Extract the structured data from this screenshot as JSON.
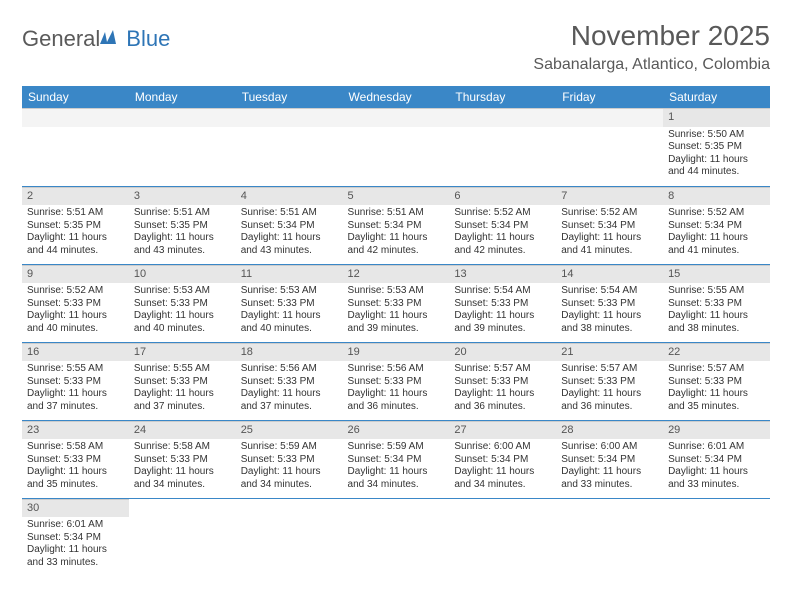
{
  "brand": {
    "part1": "General",
    "part2": "Blue"
  },
  "colors": {
    "header_bg": "#3a87c7",
    "header_text": "#ffffff",
    "daynum_bg": "#e7e7e7",
    "border": "#3a87c7",
    "title": "#595959",
    "body_text": "#333333",
    "logo_gray": "#5a5a5a",
    "logo_blue": "#2e75b6"
  },
  "title": "November 2025",
  "location": "Sabanalarga, Atlantico, Colombia",
  "weekdays": [
    "Sunday",
    "Monday",
    "Tuesday",
    "Wednesday",
    "Thursday",
    "Friday",
    "Saturday"
  ],
  "weeks": [
    [
      null,
      null,
      null,
      null,
      null,
      null,
      {
        "n": "1",
        "sr": "Sunrise: 5:50 AM",
        "ss": "Sunset: 5:35 PM",
        "d1": "Daylight: 11 hours",
        "d2": "and 44 minutes."
      }
    ],
    [
      {
        "n": "2",
        "sr": "Sunrise: 5:51 AM",
        "ss": "Sunset: 5:35 PM",
        "d1": "Daylight: 11 hours",
        "d2": "and 44 minutes."
      },
      {
        "n": "3",
        "sr": "Sunrise: 5:51 AM",
        "ss": "Sunset: 5:35 PM",
        "d1": "Daylight: 11 hours",
        "d2": "and 43 minutes."
      },
      {
        "n": "4",
        "sr": "Sunrise: 5:51 AM",
        "ss": "Sunset: 5:34 PM",
        "d1": "Daylight: 11 hours",
        "d2": "and 43 minutes."
      },
      {
        "n": "5",
        "sr": "Sunrise: 5:51 AM",
        "ss": "Sunset: 5:34 PM",
        "d1": "Daylight: 11 hours",
        "d2": "and 42 minutes."
      },
      {
        "n": "6",
        "sr": "Sunrise: 5:52 AM",
        "ss": "Sunset: 5:34 PM",
        "d1": "Daylight: 11 hours",
        "d2": "and 42 minutes."
      },
      {
        "n": "7",
        "sr": "Sunrise: 5:52 AM",
        "ss": "Sunset: 5:34 PM",
        "d1": "Daylight: 11 hours",
        "d2": "and 41 minutes."
      },
      {
        "n": "8",
        "sr": "Sunrise: 5:52 AM",
        "ss": "Sunset: 5:34 PM",
        "d1": "Daylight: 11 hours",
        "d2": "and 41 minutes."
      }
    ],
    [
      {
        "n": "9",
        "sr": "Sunrise: 5:52 AM",
        "ss": "Sunset: 5:33 PM",
        "d1": "Daylight: 11 hours",
        "d2": "and 40 minutes."
      },
      {
        "n": "10",
        "sr": "Sunrise: 5:53 AM",
        "ss": "Sunset: 5:33 PM",
        "d1": "Daylight: 11 hours",
        "d2": "and 40 minutes."
      },
      {
        "n": "11",
        "sr": "Sunrise: 5:53 AM",
        "ss": "Sunset: 5:33 PM",
        "d1": "Daylight: 11 hours",
        "d2": "and 40 minutes."
      },
      {
        "n": "12",
        "sr": "Sunrise: 5:53 AM",
        "ss": "Sunset: 5:33 PM",
        "d1": "Daylight: 11 hours",
        "d2": "and 39 minutes."
      },
      {
        "n": "13",
        "sr": "Sunrise: 5:54 AM",
        "ss": "Sunset: 5:33 PM",
        "d1": "Daylight: 11 hours",
        "d2": "and 39 minutes."
      },
      {
        "n": "14",
        "sr": "Sunrise: 5:54 AM",
        "ss": "Sunset: 5:33 PM",
        "d1": "Daylight: 11 hours",
        "d2": "and 38 minutes."
      },
      {
        "n": "15",
        "sr": "Sunrise: 5:55 AM",
        "ss": "Sunset: 5:33 PM",
        "d1": "Daylight: 11 hours",
        "d2": "and 38 minutes."
      }
    ],
    [
      {
        "n": "16",
        "sr": "Sunrise: 5:55 AM",
        "ss": "Sunset: 5:33 PM",
        "d1": "Daylight: 11 hours",
        "d2": "and 37 minutes."
      },
      {
        "n": "17",
        "sr": "Sunrise: 5:55 AM",
        "ss": "Sunset: 5:33 PM",
        "d1": "Daylight: 11 hours",
        "d2": "and 37 minutes."
      },
      {
        "n": "18",
        "sr": "Sunrise: 5:56 AM",
        "ss": "Sunset: 5:33 PM",
        "d1": "Daylight: 11 hours",
        "d2": "and 37 minutes."
      },
      {
        "n": "19",
        "sr": "Sunrise: 5:56 AM",
        "ss": "Sunset: 5:33 PM",
        "d1": "Daylight: 11 hours",
        "d2": "and 36 minutes."
      },
      {
        "n": "20",
        "sr": "Sunrise: 5:57 AM",
        "ss": "Sunset: 5:33 PM",
        "d1": "Daylight: 11 hours",
        "d2": "and 36 minutes."
      },
      {
        "n": "21",
        "sr": "Sunrise: 5:57 AM",
        "ss": "Sunset: 5:33 PM",
        "d1": "Daylight: 11 hours",
        "d2": "and 36 minutes."
      },
      {
        "n": "22",
        "sr": "Sunrise: 5:57 AM",
        "ss": "Sunset: 5:33 PM",
        "d1": "Daylight: 11 hours",
        "d2": "and 35 minutes."
      }
    ],
    [
      {
        "n": "23",
        "sr": "Sunrise: 5:58 AM",
        "ss": "Sunset: 5:33 PM",
        "d1": "Daylight: 11 hours",
        "d2": "and 35 minutes."
      },
      {
        "n": "24",
        "sr": "Sunrise: 5:58 AM",
        "ss": "Sunset: 5:33 PM",
        "d1": "Daylight: 11 hours",
        "d2": "and 34 minutes."
      },
      {
        "n": "25",
        "sr": "Sunrise: 5:59 AM",
        "ss": "Sunset: 5:33 PM",
        "d1": "Daylight: 11 hours",
        "d2": "and 34 minutes."
      },
      {
        "n": "26",
        "sr": "Sunrise: 5:59 AM",
        "ss": "Sunset: 5:34 PM",
        "d1": "Daylight: 11 hours",
        "d2": "and 34 minutes."
      },
      {
        "n": "27",
        "sr": "Sunrise: 6:00 AM",
        "ss": "Sunset: 5:34 PM",
        "d1": "Daylight: 11 hours",
        "d2": "and 34 minutes."
      },
      {
        "n": "28",
        "sr": "Sunrise: 6:00 AM",
        "ss": "Sunset: 5:34 PM",
        "d1": "Daylight: 11 hours",
        "d2": "and 33 minutes."
      },
      {
        "n": "29",
        "sr": "Sunrise: 6:01 AM",
        "ss": "Sunset: 5:34 PM",
        "d1": "Daylight: 11 hours",
        "d2": "and 33 minutes."
      }
    ],
    [
      {
        "n": "30",
        "sr": "Sunrise: 6:01 AM",
        "ss": "Sunset: 5:34 PM",
        "d1": "Daylight: 11 hours",
        "d2": "and 33 minutes."
      },
      null,
      null,
      null,
      null,
      null,
      null
    ]
  ]
}
